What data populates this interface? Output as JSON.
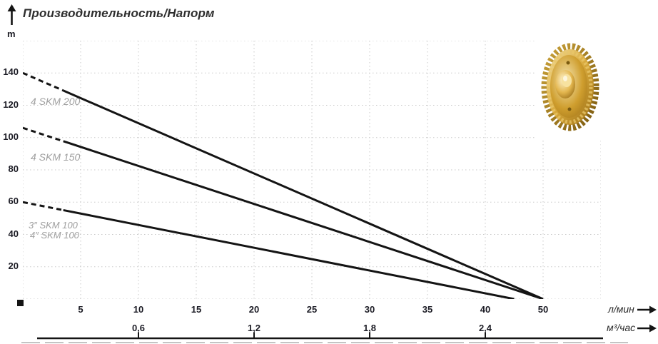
{
  "title": "Производительность/Напорм",
  "y_axis_unit": "m",
  "x_axis": {
    "unit_l_min": "л/мин",
    "unit_m3_h": "м³/час"
  },
  "colors": {
    "curve": "#141414",
    "grid": "#c9c9c9",
    "series_label": "#9f9f9f",
    "tick_text": "#1b1b24",
    "impeller_gold_light": "#f6e7b4",
    "impeller_gold_mid": "#d8a93c",
    "impeller_gold_dark": "#8a5f10"
  },
  "chart_data": {
    "type": "line",
    "title": "Производительность/Напорм",
    "xlabel_primary": "л/мин",
    "xlabel_secondary": "м³/час",
    "ylabel": "m",
    "ylim": [
      0,
      160
    ],
    "grid": "dotted",
    "x_ticks_l_min": [
      "5",
      "10",
      "15",
      "20",
      "25",
      "30",
      "35",
      "40",
      "50"
    ],
    "x_ticks_l_min_values": [
      5,
      10,
      15,
      20,
      25,
      30,
      35,
      40,
      50
    ],
    "x_ticks_m3_h": [
      "0,6",
      "1,2",
      "1,8",
      "2,4"
    ],
    "x_ticks_m3_h_at_l_min": [
      10,
      20,
      30,
      40
    ],
    "y_ticks": [
      "140",
      "120",
      "100",
      "80",
      "60",
      "40",
      "20"
    ],
    "y_tick_values": [
      140,
      120,
      100,
      80,
      60,
      40,
      20
    ],
    "series": [
      {
        "name": "4 SKM 200",
        "label": "4 SKM 200",
        "points": [
          [
            0,
            140
          ],
          [
            50,
            0
          ]
        ],
        "dashed_until_l_min": 3.5
      },
      {
        "name": "4 SKM 150",
        "label": "4 SKM 150",
        "points": [
          [
            0,
            106
          ],
          [
            50,
            0
          ]
        ],
        "dashed_until_l_min": 3.5
      },
      {
        "name": "SKM 100",
        "labels": {
          "line1": "3″ SKM 100",
          "line2": "4″ SKM 100"
        },
        "points": [
          [
            0,
            60
          ],
          [
            45,
            0
          ]
        ],
        "dashed_until_l_min": 3.5
      }
    ]
  }
}
